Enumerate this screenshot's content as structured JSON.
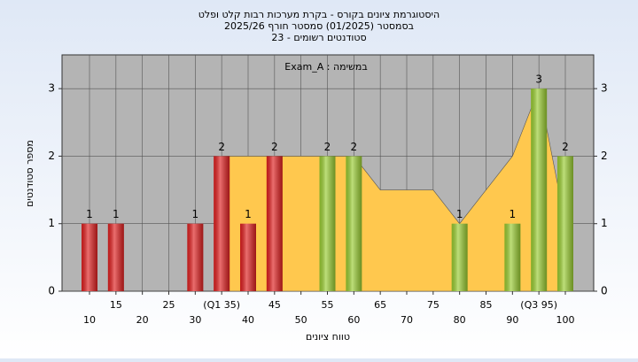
{
  "chart_data": {
    "type": "bar",
    "title": "היסטוגרמת ציונים בקורס - בקרת מערכות רבות קלט ופלט",
    "subtitle": "בסמסטר  (01/2025)  סמסטר חורף 2025/26",
    "subtitle2": "סטודנטים רשומים - 23",
    "annotation": "במשימה : Exam_A",
    "x_label": "טווח ציונים",
    "y_label": "מספר סטודנטים",
    "categories": [
      "10",
      "15",
      "20",
      "25",
      "30",
      "(Q1 35)",
      "40",
      "45",
      "50",
      "55",
      "60",
      "65",
      "70",
      "75",
      "80",
      "85",
      "90",
      "(Q3 95)",
      "100"
    ],
    "series": [
      {
        "values": [
          1,
          1,
          0,
          0,
          1,
          2,
          1,
          2,
          0,
          2,
          2,
          0,
          0,
          0,
          1,
          0,
          1,
          3,
          2
        ],
        "colors": [
          "#e02020",
          "#e02020",
          "#e02020",
          "#e02020",
          "#e02020",
          "#e02020",
          "#e02020",
          "#e02020",
          "#e02020",
          "#9acd32",
          "#9acd32",
          "#9acd32",
          "#9acd32",
          "#9acd32",
          "#9acd32",
          "#9acd32",
          "#9acd32",
          "#9acd32",
          "#9acd32"
        ]
      },
      {
        "type": "area",
        "color": "#ffc84e",
        "values": [
          null,
          null,
          null,
          null,
          null,
          2,
          2,
          2,
          2,
          2,
          2,
          1.5,
          1.5,
          1.5,
          1,
          1.5,
          2,
          3,
          1
        ]
      }
    ],
    "ylim": [
      0,
      3.5
    ],
    "yticks": [
      0,
      1,
      2,
      3
    ],
    "grid": true
  }
}
